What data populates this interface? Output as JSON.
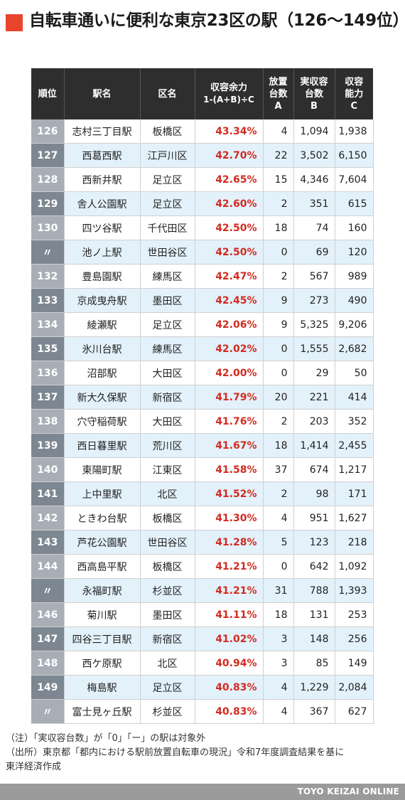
{
  "title": "自転車通いに便利な東京23区の駅（126〜149位）",
  "headers": {
    "rank": "順位",
    "station": "駅名",
    "ward": "区名",
    "rate_line1": "収容余力",
    "rate_line2": "1-(A+B)÷C",
    "parked_line1": "放置",
    "parked_line2": "台数",
    "parked_line3": "A",
    "actual_line1": "実収容",
    "actual_line2": "台数",
    "actual_line3": "B",
    "capacity_line1": "収容",
    "capacity_line2": "能力",
    "capacity_line3": "C"
  },
  "rows": [
    {
      "rank": "126",
      "station": "志村三丁目駅",
      "ward": "板橋区",
      "rate": "43.34%",
      "parked": "4",
      "actual": "1,094",
      "capacity": "1,938"
    },
    {
      "rank": "127",
      "station": "西葛西駅",
      "ward": "江戸川区",
      "rate": "42.70%",
      "parked": "22",
      "actual": "3,502",
      "capacity": "6,150"
    },
    {
      "rank": "128",
      "station": "西新井駅",
      "ward": "足立区",
      "rate": "42.65%",
      "parked": "15",
      "actual": "4,346",
      "capacity": "7,604"
    },
    {
      "rank": "129",
      "station": "舎人公園駅",
      "ward": "足立区",
      "rate": "42.60%",
      "parked": "2",
      "actual": "351",
      "capacity": "615"
    },
    {
      "rank": "130",
      "station": "四ツ谷駅",
      "ward": "千代田区",
      "rate": "42.50%",
      "parked": "18",
      "actual": "74",
      "capacity": "160"
    },
    {
      "rank": "〃",
      "station": "池ノ上駅",
      "ward": "世田谷区",
      "rate": "42.50%",
      "parked": "0",
      "actual": "69",
      "capacity": "120"
    },
    {
      "rank": "132",
      "station": "豊島園駅",
      "ward": "練馬区",
      "rate": "42.47%",
      "parked": "2",
      "actual": "567",
      "capacity": "989"
    },
    {
      "rank": "133",
      "station": "京成曳舟駅",
      "ward": "墨田区",
      "rate": "42.45%",
      "parked": "9",
      "actual": "273",
      "capacity": "490"
    },
    {
      "rank": "134",
      "station": "綾瀬駅",
      "ward": "足立区",
      "rate": "42.06%",
      "parked": "9",
      "actual": "5,325",
      "capacity": "9,206"
    },
    {
      "rank": "135",
      "station": "氷川台駅",
      "ward": "練馬区",
      "rate": "42.02%",
      "parked": "0",
      "actual": "1,555",
      "capacity": "2,682"
    },
    {
      "rank": "136",
      "station": "沼部駅",
      "ward": "大田区",
      "rate": "42.00%",
      "parked": "0",
      "actual": "29",
      "capacity": "50"
    },
    {
      "rank": "137",
      "station": "新大久保駅",
      "ward": "新宿区",
      "rate": "41.79%",
      "parked": "20",
      "actual": "221",
      "capacity": "414"
    },
    {
      "rank": "138",
      "station": "穴守稲荷駅",
      "ward": "大田区",
      "rate": "41.76%",
      "parked": "2",
      "actual": "203",
      "capacity": "352"
    },
    {
      "rank": "139",
      "station": "西日暮里駅",
      "ward": "荒川区",
      "rate": "41.67%",
      "parked": "18",
      "actual": "1,414",
      "capacity": "2,455"
    },
    {
      "rank": "140",
      "station": "東陽町駅",
      "ward": "江東区",
      "rate": "41.58%",
      "parked": "37",
      "actual": "674",
      "capacity": "1,217"
    },
    {
      "rank": "141",
      "station": "上中里駅",
      "ward": "北区",
      "rate": "41.52%",
      "parked": "2",
      "actual": "98",
      "capacity": "171"
    },
    {
      "rank": "142",
      "station": "ときわ台駅",
      "ward": "板橋区",
      "rate": "41.30%",
      "parked": "4",
      "actual": "951",
      "capacity": "1,627"
    },
    {
      "rank": "143",
      "station": "芦花公園駅",
      "ward": "世田谷区",
      "rate": "41.28%",
      "parked": "5",
      "actual": "123",
      "capacity": "218"
    },
    {
      "rank": "144",
      "station": "西高島平駅",
      "ward": "板橋区",
      "rate": "41.21%",
      "parked": "0",
      "actual": "642",
      "capacity": "1,092"
    },
    {
      "rank": "〃",
      "station": "永福町駅",
      "ward": "杉並区",
      "rate": "41.21%",
      "parked": "31",
      "actual": "788",
      "capacity": "1,393"
    },
    {
      "rank": "146",
      "station": "菊川駅",
      "ward": "墨田区",
      "rate": "41.11%",
      "parked": "18",
      "actual": "131",
      "capacity": "253"
    },
    {
      "rank": "147",
      "station": "四谷三丁目駅",
      "ward": "新宿区",
      "rate": "41.02%",
      "parked": "3",
      "actual": "148",
      "capacity": "256"
    },
    {
      "rank": "148",
      "station": "西ケ原駅",
      "ward": "北区",
      "rate": "40.94%",
      "parked": "3",
      "actual": "85",
      "capacity": "149"
    },
    {
      "rank": "149",
      "station": "梅島駅",
      "ward": "足立区",
      "rate": "40.83%",
      "parked": "4",
      "actual": "1,229",
      "capacity": "2,084"
    },
    {
      "rank": "〃",
      "station": "富士見ヶ丘駅",
      "ward": "杉並区",
      "rate": "40.83%",
      "parked": "4",
      "actual": "367",
      "capacity": "627"
    }
  ],
  "notes": {
    "note": "（注）「実収容台数」が「0」「ー」の駅は対象外",
    "source_line1": "（出所）東京都「都内における駅前放置自転車の現況」令和7年度調査結果を基に",
    "source_line2": "東洋経済作成"
  },
  "footer": "TOYO KEIZAI ONLINE",
  "colors": {
    "accent": "#e8452c",
    "header_bg": "#2e2e2e",
    "rate_text": "#d22b1f",
    "row_alt": "#e3f1fb",
    "rank_odd": "#a7aeb6",
    "rank_even": "#7d8791"
  }
}
